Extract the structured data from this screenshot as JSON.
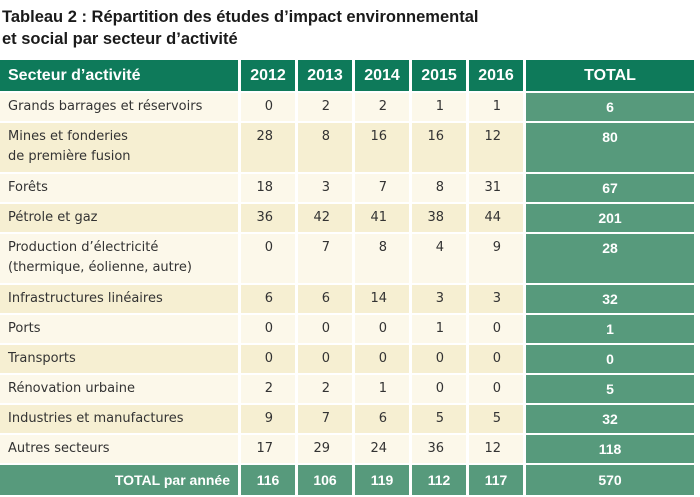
{
  "title_line1": "Tableau 2 : Répartition des études d’impact environnemental",
  "title_line2": "et social par secteur d’activité",
  "headers": [
    "Secteur d’activité",
    "2012",
    "2013",
    "2014",
    "2015",
    "2016",
    "TOTAL"
  ],
  "rows": [
    {
      "sector": "Grands barrages et réservoirs",
      "values": [
        "0",
        "2",
        "2",
        "1",
        "1"
      ],
      "total": "6"
    },
    {
      "sector": "Mines et fonderies\nde première fusion",
      "values": [
        "28",
        "8",
        "16",
        "16",
        "12"
      ],
      "total": "80"
    },
    {
      "sector": "Forêts",
      "values": [
        "18",
        "3",
        "7",
        "8",
        "31"
      ],
      "total": "67"
    },
    {
      "sector": "Pétrole et gaz",
      "values": [
        "36",
        "42",
        "41",
        "38",
        "44"
      ],
      "total": "201"
    },
    {
      "sector": "Production d’électricité\n(thermique, éolienne, autre)",
      "values": [
        "0",
        "7",
        "8",
        "4",
        "9"
      ],
      "total": "28"
    },
    {
      "sector": "Infrastructures linéaires",
      "values": [
        "6",
        "6",
        "14",
        "3",
        "3"
      ],
      "total": "32"
    },
    {
      "sector": "Ports",
      "values": [
        "0",
        "0",
        "0",
        "1",
        "0"
      ],
      "total": "1"
    },
    {
      "sector": "Transports",
      "values": [
        "0",
        "0",
        "0",
        "0",
        "0"
      ],
      "total": "0"
    },
    {
      "sector": "Rénovation urbaine",
      "values": [
        "2",
        "2",
        "1",
        "0",
        "0"
      ],
      "total": "5"
    },
    {
      "sector": "Industries et manufactures",
      "values": [
        "9",
        "7",
        "6",
        "5",
        "5"
      ],
      "total": "32"
    },
    {
      "sector": "Autres secteurs",
      "values": [
        "17",
        "29",
        "24",
        "36",
        "12"
      ],
      "total": "118"
    }
  ],
  "totals_row": {
    "label": "TOTAL par année",
    "values": [
      "116",
      "106",
      "119",
      "112",
      "117"
    ],
    "total": "570"
  },
  "colors": {
    "header": "#0e7a5a",
    "total": "#579a7c",
    "row_light": "#fcf8ea",
    "row_dark": "#f6efd2"
  }
}
